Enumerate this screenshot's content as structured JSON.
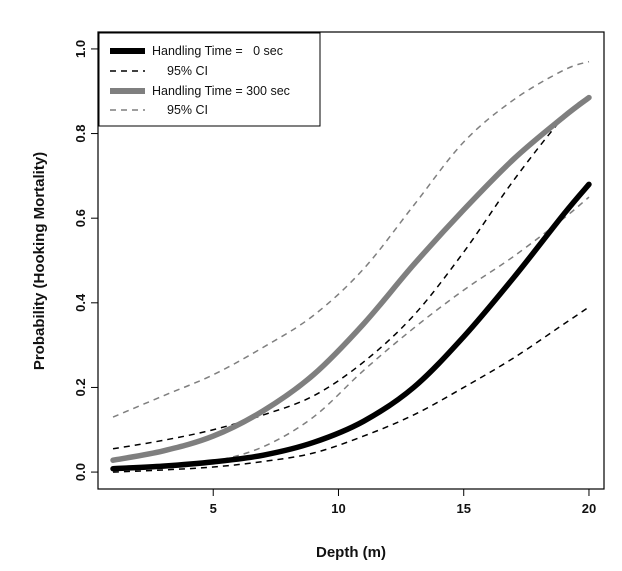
{
  "chart_data": {
    "type": "line",
    "xlabel": "Depth (m)",
    "ylabel": "Probability (Hooking Mortality)",
    "xlim": [
      0.4,
      20.6
    ],
    "ylim": [
      -0.04,
      1.04
    ],
    "xticks": [
      5,
      10,
      15,
      20
    ],
    "yticks": [
      0.0,
      0.2,
      0.4,
      0.6,
      0.8,
      1.0
    ],
    "xtick_labels": [
      "5",
      "10",
      "15",
      "20"
    ],
    "ytick_labels": [
      "0.0",
      "0.2",
      "0.4",
      "0.6",
      "0.8",
      "1.0"
    ],
    "grid": false,
    "legend_position": "top-left",
    "legend": [
      {
        "label": "Handling Time =   0 sec",
        "color": "#000000",
        "style": "solid"
      },
      {
        "label": "95% CI",
        "color": "#000000",
        "style": "dashed"
      },
      {
        "label": "Handling Time = 300 sec",
        "color": "#7f7f7f",
        "style": "solid"
      },
      {
        "label": "95% CI",
        "color": "#7f7f7f",
        "style": "dashed"
      }
    ],
    "series": [
      {
        "name": "Handling Time = 0 sec",
        "style": "solid",
        "color": "#000000",
        "x": [
          1,
          3,
          5,
          7,
          9,
          11,
          13,
          15,
          17,
          19,
          20
        ],
        "y": [
          0.008,
          0.014,
          0.024,
          0.04,
          0.07,
          0.12,
          0.2,
          0.32,
          0.46,
          0.61,
          0.68
        ]
      },
      {
        "name": "Handling Time = 0 sec lower 95% CI",
        "style": "dashed",
        "color": "#000000",
        "x": [
          1,
          3,
          5,
          7,
          9,
          11,
          13,
          15,
          17,
          19,
          20
        ],
        "y": [
          0.0,
          0.005,
          0.012,
          0.025,
          0.045,
          0.085,
          0.135,
          0.2,
          0.27,
          0.35,
          0.39
        ]
      },
      {
        "name": "Handling Time = 0 sec upper 95% CI",
        "style": "dashed",
        "color": "#000000",
        "x": [
          1,
          3,
          5,
          7,
          9,
          11,
          13,
          15,
          17,
          19,
          20
        ],
        "y": [
          0.055,
          0.075,
          0.1,
          0.135,
          0.18,
          0.26,
          0.37,
          0.52,
          0.69,
          0.84,
          0.89
        ]
      },
      {
        "name": "Handling Time = 300 sec",
        "style": "solid",
        "color": "#7f7f7f",
        "x": [
          1,
          3,
          5,
          7,
          9,
          11,
          13,
          15,
          17,
          19,
          20
        ],
        "y": [
          0.028,
          0.05,
          0.085,
          0.145,
          0.23,
          0.35,
          0.49,
          0.62,
          0.74,
          0.84,
          0.885
        ]
      },
      {
        "name": "Handling Time = 300 sec lower 95% CI",
        "style": "dashed",
        "color": "#7f7f7f",
        "x": [
          1,
          3,
          5,
          7,
          9,
          11,
          13,
          15,
          17,
          19,
          20
        ],
        "y": [
          0.005,
          0.01,
          0.025,
          0.06,
          0.13,
          0.24,
          0.34,
          0.43,
          0.51,
          0.6,
          0.65
        ]
      },
      {
        "name": "Handling Time = 300 sec upper 95% CI",
        "style": "dashed",
        "color": "#7f7f7f",
        "x": [
          1,
          3,
          5,
          7,
          9,
          11,
          13,
          15,
          17,
          19,
          20
        ],
        "y": [
          0.13,
          0.18,
          0.23,
          0.295,
          0.37,
          0.48,
          0.63,
          0.78,
          0.88,
          0.95,
          0.97
        ]
      }
    ]
  }
}
